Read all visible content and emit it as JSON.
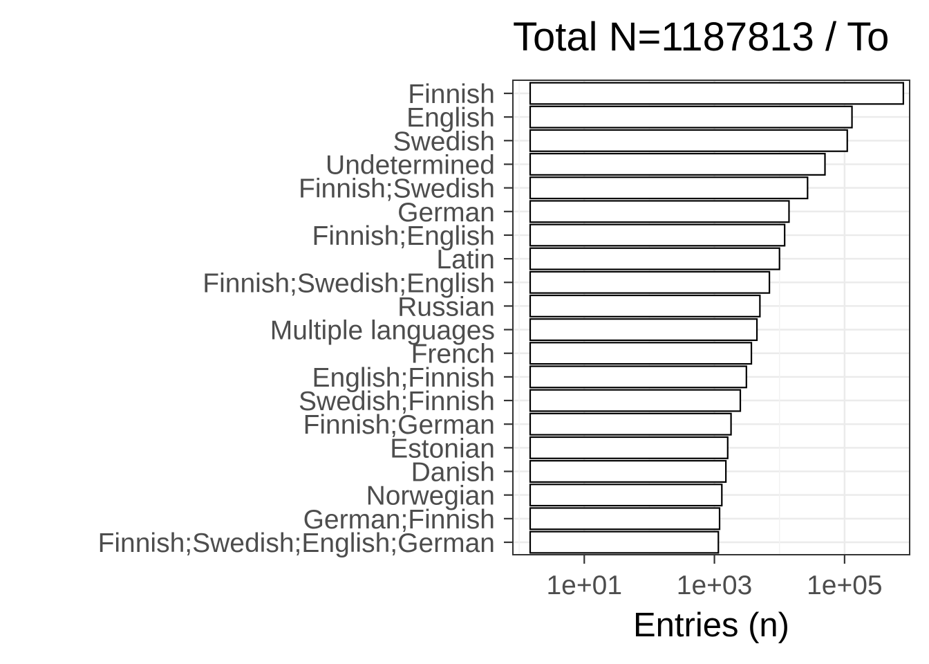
{
  "chart_data": {
    "type": "bar",
    "orientation": "horizontal",
    "title": "Total N=1187813 / To",
    "xlabel": "Entries (n)",
    "ylabel": "",
    "x_scale": "log10",
    "xlim": [
      0.8,
      1000000
    ],
    "x_ticks": [
      10,
      1000,
      100000
    ],
    "x_tick_labels": [
      "1e+01",
      "1e+03",
      "1e+05"
    ],
    "grid": true,
    "categories": [
      "Finnish",
      "English",
      "Swedish",
      "Undetermined",
      "Finnish;Swedish",
      "German",
      "Finnish;English",
      "Latin",
      "Finnish;Swedish;English",
      "Russian",
      "Multiple languages",
      "French",
      "English;Finnish",
      "Swedish;Finnish",
      "Finnish;German",
      "Estonian",
      "Danish",
      "Norwegian",
      "German;Finnish",
      "Finnish;Swedish;English;German"
    ],
    "values": [
      800000,
      130000,
      110000,
      50000,
      27000,
      14000,
      12000,
      10000,
      7000,
      5000,
      4500,
      3700,
      3100,
      2500,
      1800,
      1600,
      1500,
      1300,
      1200,
      1150
    ],
    "bar_fill": "#ffffff",
    "bar_stroke": "#000000"
  }
}
